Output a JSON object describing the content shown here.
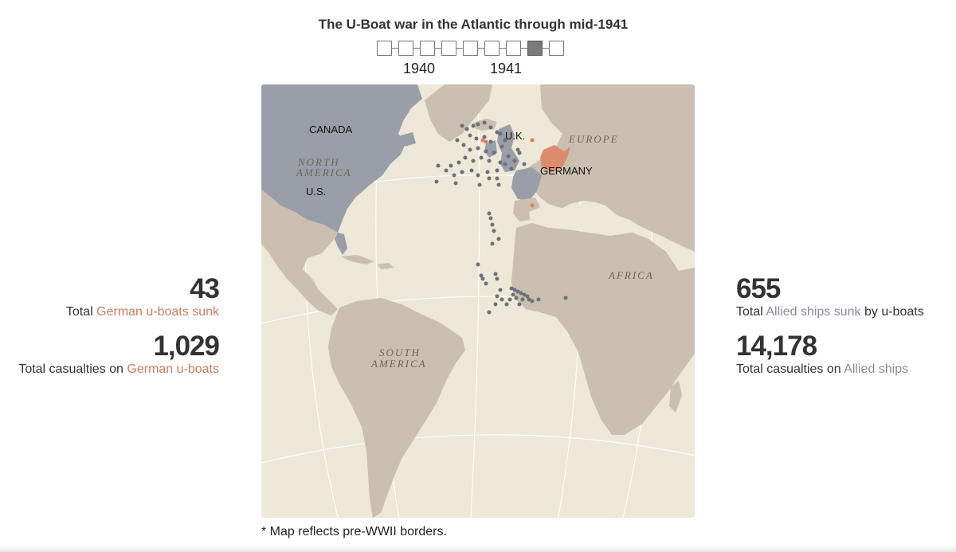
{
  "title": "The U-Boat war in the Atlantic through mid-1941",
  "timeline": {
    "steps": 9,
    "active_step": 8,
    "years": [
      {
        "label": "1940",
        "step": 2
      },
      {
        "label": "1941",
        "step": 6
      }
    ]
  },
  "map": {
    "labels": {
      "canada": "CANADA",
      "north_america": "NORTH AMERICA",
      "us": "U.S.",
      "uk": "U.K.",
      "europe": "EUROPE",
      "germany": "GERMANY",
      "africa": "AFRICA",
      "south_america": "SOUTH AMERICA"
    },
    "colors": {
      "ocean": "#ede8d7",
      "land": "#cabfb0",
      "allied_land": "#9a9ea9",
      "germany": "#dd8b6e",
      "graticule": "#ffffff",
      "allied_ship": "#6d717a",
      "german_uboat": "#d9825f"
    }
  },
  "stats": {
    "german_sunk": {
      "value": "43",
      "prefix": "Total ",
      "highlight": "German u-boats sunk",
      "suffix": ""
    },
    "german_casualties": {
      "value": "1,029",
      "prefix": "Total casualties on ",
      "highlight": "German u-boats",
      "suffix": ""
    },
    "allied_sunk": {
      "value": "655",
      "prefix": "Total ",
      "highlight": "Allied ships sunk",
      "suffix": " by u-boats"
    },
    "allied_casualties": {
      "value": "14,178",
      "prefix": "Total casualties on ",
      "highlight": "Allied ships",
      "suffix": ""
    }
  },
  "footnote": "* Map reflects pre-WWII borders."
}
